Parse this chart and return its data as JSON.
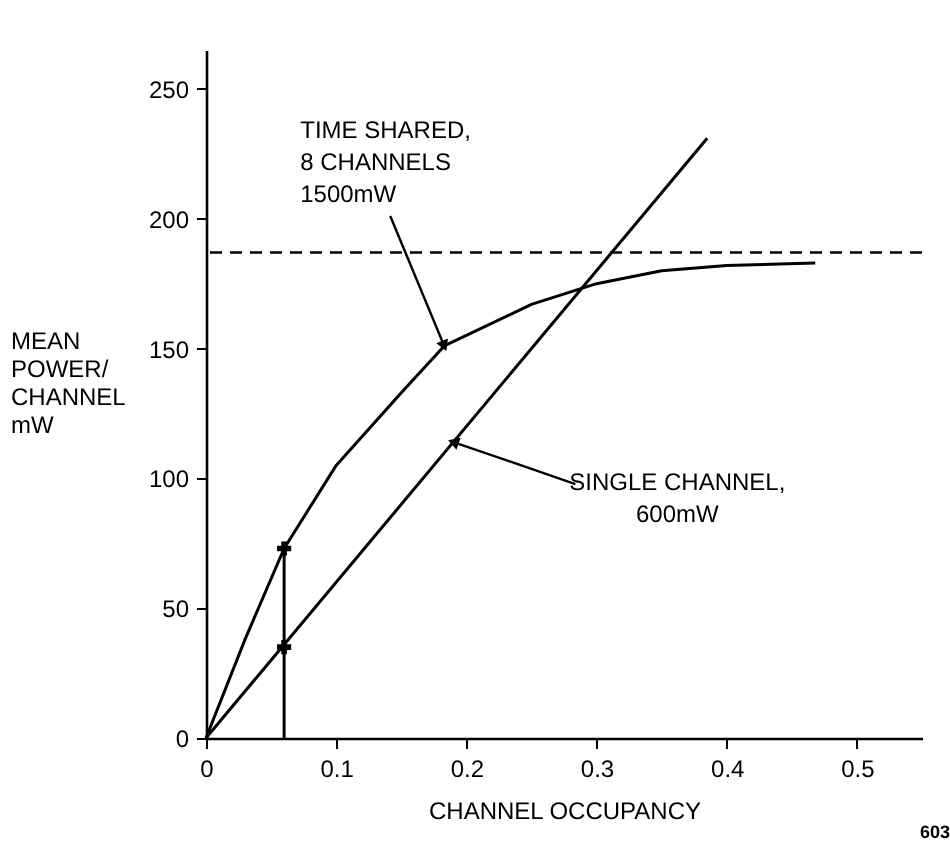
{
  "chart_data": {
    "type": "line",
    "xlabel": "CHANNEL OCCUPANCY",
    "ylabel": "MEAN\nPOWER/\nCHANNEL\nmW",
    "xlim": [
      0,
      0.55
    ],
    "ylim": [
      0,
      265
    ],
    "xticks": [
      0,
      0.1,
      0.2,
      0.3,
      0.4,
      0.5
    ],
    "yticks": [
      0,
      50,
      100,
      150,
      200,
      250
    ],
    "grid": false,
    "line_style": "solid",
    "marker": "none",
    "series": [
      {
        "color": "#000000",
        "x": [
          0,
          0.03,
          0.06,
          0.1,
          0.15,
          0.183,
          0.25,
          0.3,
          0.35,
          0.4,
          0.468
        ],
        "values": [
          0,
          38,
          73,
          105,
          133,
          151,
          167,
          175,
          180,
          182,
          183
        ]
      },
      {
        "color": "#000000",
        "x": [
          0,
          0.385
        ],
        "values": [
          0,
          231
        ]
      },
      {
        "color": "#000000",
        "x": [
          0.06,
          0.06
        ],
        "values": [
          0,
          73
        ]
      },
      {
        "type": "scatter",
        "marker": "cross",
        "color": "#000000",
        "x": [
          0.06,
          0.06
        ],
        "values": [
          35,
          73
        ]
      }
    ],
    "ref_lines": [
      {
        "axis": "y",
        "value": 187,
        "line_style": "dashed",
        "color": "#000000"
      }
    ],
    "annotations": [
      {
        "text": "TIME SHARED,\n8 CHANNELS\n1500mW",
        "x": 0.183,
        "y": 151
      },
      {
        "text": "SINGLE CHANNEL,\n600mW",
        "x": 0.19,
        "y": 114
      },
      "603"
    ]
  }
}
